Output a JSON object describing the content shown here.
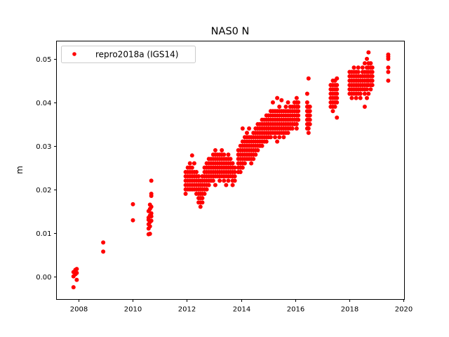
{
  "chart_data": {
    "type": "scatter",
    "title": "NAS0 N",
    "xlabel": "",
    "ylabel": "m",
    "xlim": [
      2007.17,
      2020.05
    ],
    "ylim": [
      -0.0053,
      0.0541
    ],
    "xticks": [
      2008,
      2010,
      2012,
      2014,
      2016,
      2018,
      2020
    ],
    "xtick_labels": [
      "2008",
      "2010",
      "2012",
      "2014",
      "2016",
      "2018",
      "2020"
    ],
    "yticks": [
      0.0,
      0.01,
      0.02,
      0.03,
      0.04,
      0.05
    ],
    "ytick_labels": [
      "0.00",
      "0.01",
      "0.02",
      "0.03",
      "0.04",
      "0.05"
    ],
    "grid": false,
    "legend": {
      "placement": "top-left",
      "entries": [
        "repro2018a (IGS14)"
      ]
    },
    "series": [
      {
        "name": "repro2018a (IGS14)",
        "color": "#ff0000",
        "marker": "circle",
        "groups": [
          {
            "x": 2007.8,
            "y": [
              -0.0025,
              0.0,
              0.001
            ]
          },
          {
            "x": 2007.87,
            "y": [
              0.0005,
              0.0012,
              0.0015
            ]
          },
          {
            "x": 2007.92,
            "y": [
              -0.0008,
              0.0008,
              0.0017
            ]
          },
          {
            "x": 2008.9,
            "y": [
              0.0057,
              0.0078
            ]
          },
          {
            "x": 2010.0,
            "y": [
              0.0129,
              0.0166
            ]
          },
          {
            "x": 2010.58,
            "y": [
              0.0097,
              0.011,
              0.012,
              0.013,
              0.0135,
              0.015
            ]
          },
          {
            "x": 2010.63,
            "y": [
              0.0098,
              0.0115,
              0.0125,
              0.014,
              0.0155,
              0.0165
            ]
          },
          {
            "x": 2010.68,
            "y": [
              0.0128,
              0.0138,
              0.0145,
              0.016,
              0.0185,
              0.019,
              0.022
            ]
          },
          {
            "x": 2011.95,
            "y": [
              0.019,
              0.02,
              0.021,
              0.022,
              0.023,
              0.024
            ]
          },
          {
            "x": 2012.03,
            "y": [
              0.02,
              0.021,
              0.022,
              0.023,
              0.024,
              0.025
            ]
          },
          {
            "x": 2012.11,
            "y": [
              0.02,
              0.021,
              0.022,
              0.023,
              0.024,
              0.025,
              0.026
            ]
          },
          {
            "x": 2012.19,
            "y": [
              0.02,
              0.021,
              0.022,
              0.023,
              0.024,
              0.025,
              0.0278
            ]
          },
          {
            "x": 2012.27,
            "y": [
              0.02,
              0.021,
              0.022,
              0.023,
              0.024,
              0.026
            ]
          },
          {
            "x": 2012.35,
            "y": [
              0.019,
              0.02,
              0.021,
              0.022,
              0.023,
              0.024
            ]
          },
          {
            "x": 2012.43,
            "y": [
              0.017,
              0.018,
              0.019,
              0.02,
              0.021,
              0.022,
              0.023
            ]
          },
          {
            "x": 2012.5,
            "y": [
              0.016,
              0.017,
              0.018,
              0.019,
              0.02,
              0.021,
              0.022
            ]
          },
          {
            "x": 2012.57,
            "y": [
              0.017,
              0.018,
              0.019,
              0.02,
              0.021,
              0.022,
              0.023
            ]
          },
          {
            "x": 2012.65,
            "y": [
              0.019,
              0.02,
              0.021,
              0.022,
              0.023,
              0.024,
              0.025
            ]
          },
          {
            "x": 2012.73,
            "y": [
              0.02,
              0.021,
              0.022,
              0.023,
              0.024,
              0.025,
              0.026
            ]
          },
          {
            "x": 2012.81,
            "y": [
              0.021,
              0.022,
              0.023,
              0.024,
              0.025,
              0.026,
              0.027
            ]
          },
          {
            "x": 2012.89,
            "y": [
              0.022,
              0.023,
              0.024,
              0.025,
              0.026,
              0.027
            ]
          },
          {
            "x": 2012.97,
            "y": [
              0.022,
              0.023,
              0.024,
              0.025,
              0.026,
              0.027,
              0.028
            ]
          },
          {
            "x": 2013.05,
            "y": [
              0.021,
              0.023,
              0.024,
              0.025,
              0.026,
              0.027,
              0.028,
              0.029
            ]
          },
          {
            "x": 2013.13,
            "y": [
              0.023,
              0.024,
              0.025,
              0.026,
              0.027,
              0.028
            ]
          },
          {
            "x": 2013.21,
            "y": [
              0.022,
              0.023,
              0.024,
              0.025,
              0.026,
              0.027,
              0.028
            ]
          },
          {
            "x": 2013.29,
            "y": [
              0.023,
              0.024,
              0.025,
              0.026,
              0.027,
              0.028,
              0.029
            ]
          },
          {
            "x": 2013.37,
            "y": [
              0.022,
              0.023,
              0.024,
              0.025,
              0.026,
              0.027,
              0.028
            ]
          },
          {
            "x": 2013.45,
            "y": [
              0.021,
              0.023,
              0.024,
              0.025,
              0.026,
              0.027
            ]
          },
          {
            "x": 2013.53,
            "y": [
              0.022,
              0.023,
              0.024,
              0.025,
              0.026,
              0.027,
              0.028
            ]
          },
          {
            "x": 2013.61,
            "y": [
              0.023,
              0.024,
              0.025,
              0.026,
              0.027
            ]
          },
          {
            "x": 2013.69,
            "y": [
              0.021,
              0.022,
              0.023,
              0.024,
              0.025,
              0.026
            ]
          },
          {
            "x": 2013.77,
            "y": [
              0.022,
              0.023,
              0.024,
              0.025
            ]
          },
          {
            "x": 2013.9,
            "y": [
              0.024,
              0.025,
              0.026,
              0.027,
              0.028,
              0.029
            ]
          },
          {
            "x": 2013.98,
            "y": [
              0.024,
              0.025,
              0.026,
              0.027,
              0.028,
              0.029,
              0.03
            ]
          },
          {
            "x": 2014.06,
            "y": [
              0.025,
              0.026,
              0.027,
              0.028,
              0.029,
              0.03,
              0.031,
              0.034
            ]
          },
          {
            "x": 2014.14,
            "y": [
              0.026,
              0.027,
              0.028,
              0.029,
              0.03,
              0.031,
              0.032
            ]
          },
          {
            "x": 2014.22,
            "y": [
              0.027,
              0.028,
              0.029,
              0.03,
              0.031,
              0.032,
              0.033
            ]
          },
          {
            "x": 2014.3,
            "y": [
              0.027,
              0.028,
              0.029,
              0.03,
              0.031,
              0.032,
              0.034
            ]
          },
          {
            "x": 2014.38,
            "y": [
              0.026,
              0.027,
              0.028,
              0.029,
              0.03,
              0.031,
              0.032
            ]
          },
          {
            "x": 2014.46,
            "y": [
              0.027,
              0.028,
              0.029,
              0.03,
              0.031,
              0.032,
              0.033
            ]
          },
          {
            "x": 2014.54,
            "y": [
              0.028,
              0.029,
              0.03,
              0.031,
              0.032,
              0.033,
              0.034
            ]
          },
          {
            "x": 2014.62,
            "y": [
              0.029,
              0.03,
              0.031,
              0.032,
              0.033,
              0.034,
              0.035
            ]
          },
          {
            "x": 2014.7,
            "y": [
              0.03,
              0.031,
              0.032,
              0.033,
              0.034,
              0.035
            ]
          },
          {
            "x": 2014.78,
            "y": [
              0.03,
              0.031,
              0.032,
              0.033,
              0.034,
              0.035,
              0.036
            ]
          },
          {
            "x": 2014.86,
            "y": [
              0.031,
              0.032,
              0.033,
              0.034,
              0.035,
              0.036
            ]
          },
          {
            "x": 2014.94,
            "y": [
              0.031,
              0.032,
              0.033,
              0.034,
              0.035,
              0.036,
              0.037
            ]
          },
          {
            "x": 2015.02,
            "y": [
              0.032,
              0.033,
              0.034,
              0.035,
              0.036,
              0.037
            ]
          },
          {
            "x": 2015.1,
            "y": [
              0.032,
              0.033,
              0.034,
              0.035,
              0.036,
              0.037,
              0.038
            ]
          },
          {
            "x": 2015.18,
            "y": [
              0.033,
              0.034,
              0.035,
              0.036,
              0.037,
              0.038,
              0.04
            ]
          },
          {
            "x": 2015.26,
            "y": [
              0.032,
              0.033,
              0.034,
              0.035,
              0.036,
              0.037,
              0.038
            ]
          },
          {
            "x": 2015.34,
            "y": [
              0.031,
              0.033,
              0.034,
              0.035,
              0.036,
              0.037,
              0.038,
              0.041
            ]
          },
          {
            "x": 2015.42,
            "y": [
              0.032,
              0.033,
              0.034,
              0.035,
              0.036,
              0.037,
              0.038,
              0.039
            ]
          },
          {
            "x": 2015.5,
            "y": [
              0.033,
              0.034,
              0.035,
              0.036,
              0.037,
              0.038,
              0.0405
            ]
          },
          {
            "x": 2015.58,
            "y": [
              0.032,
              0.033,
              0.034,
              0.035,
              0.036,
              0.037,
              0.038
            ]
          },
          {
            "x": 2015.66,
            "y": [
              0.033,
              0.034,
              0.035,
              0.036,
              0.037,
              0.038,
              0.039
            ]
          },
          {
            "x": 2015.74,
            "y": [
              0.033,
              0.034,
              0.035,
              0.036,
              0.037,
              0.038,
              0.04
            ]
          },
          {
            "x": 2015.82,
            "y": [
              0.034,
              0.035,
              0.036,
              0.037,
              0.038,
              0.039
            ]
          },
          {
            "x": 2015.9,
            "y": [
              0.034,
              0.035,
              0.036,
              0.037,
              0.038,
              0.039
            ]
          },
          {
            "x": 2015.98,
            "y": [
              0.035,
              0.036,
              0.037,
              0.038,
              0.039,
              0.04
            ]
          },
          {
            "x": 2016.06,
            "y": [
              0.034,
              0.035,
              0.036,
              0.037,
              0.038,
              0.039,
              0.04,
              0.041
            ]
          },
          {
            "x": 2016.12,
            "y": [
              0.036,
              0.037,
              0.038,
              0.039,
              0.04
            ]
          },
          {
            "x": 2016.45,
            "y": [
              0.034,
              0.035,
              0.036,
              0.037,
              0.038,
              0.039,
              0.04,
              0.042
            ]
          },
          {
            "x": 2016.5,
            "y": [
              0.033,
              0.034,
              0.035,
              0.036,
              0.037,
              0.038,
              0.039,
              0.0455
            ]
          },
          {
            "x": 2016.55,
            "y": [
              0.035,
              0.036,
              0.037,
              0.038,
              0.039
            ]
          },
          {
            "x": 2017.32,
            "y": [
              0.039,
              0.04,
              0.041,
              0.042,
              0.043,
              0.044
            ]
          },
          {
            "x": 2017.4,
            "y": [
              0.038,
              0.039,
              0.04,
              0.041,
              0.042,
              0.043,
              0.044,
              0.045
            ]
          },
          {
            "x": 2017.48,
            "y": [
              0.039,
              0.04,
              0.041,
              0.042,
              0.043,
              0.044,
              0.045
            ]
          },
          {
            "x": 2017.55,
            "y": [
              0.0365,
              0.04,
              0.041,
              0.042,
              0.043,
              0.044,
              0.0455
            ]
          },
          {
            "x": 2018.02,
            "y": [
              0.042,
              0.043,
              0.044,
              0.045,
              0.046,
              0.047
            ]
          },
          {
            "x": 2018.1,
            "y": [
              0.041,
              0.042,
              0.043,
              0.044,
              0.045,
              0.046,
              0.047
            ]
          },
          {
            "x": 2018.18,
            "y": [
              0.042,
              0.043,
              0.044,
              0.045,
              0.046,
              0.047,
              0.048
            ]
          },
          {
            "x": 2018.26,
            "y": [
              0.041,
              0.042,
              0.043,
              0.044,
              0.045,
              0.046,
              0.047
            ]
          },
          {
            "x": 2018.34,
            "y": [
              0.042,
              0.043,
              0.044,
              0.045,
              0.046,
              0.047,
              0.048
            ]
          },
          {
            "x": 2018.42,
            "y": [
              0.041,
              0.042,
              0.043,
              0.044,
              0.045,
              0.046
            ]
          },
          {
            "x": 2018.5,
            "y": [
              0.043,
              0.044,
              0.045,
              0.046,
              0.047,
              0.048
            ]
          },
          {
            "x": 2018.58,
            "y": [
              0.039,
              0.042,
              0.043,
              0.044,
              0.045,
              0.046,
              0.047,
              0.049
            ]
          },
          {
            "x": 2018.66,
            "y": [
              0.041,
              0.043,
              0.044,
              0.045,
              0.046,
              0.047,
              0.048,
              0.05
            ]
          },
          {
            "x": 2018.72,
            "y": [
              0.042,
              0.044,
              0.045,
              0.046,
              0.047,
              0.048,
              0.049,
              0.0515
            ]
          },
          {
            "x": 2018.8,
            "y": [
              0.043,
              0.044,
              0.045,
              0.046,
              0.047,
              0.048,
              0.049
            ]
          },
          {
            "x": 2018.86,
            "y": [
              0.044,
              0.045,
              0.046,
              0.047,
              0.048
            ]
          },
          {
            "x": 2019.45,
            "y": [
              0.045,
              0.047,
              0.048,
              0.05,
              0.0505,
              0.051
            ]
          }
        ]
      }
    ]
  }
}
